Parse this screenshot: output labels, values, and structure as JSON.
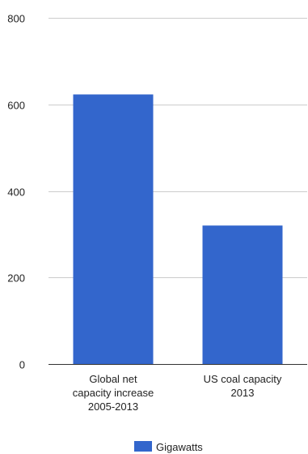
{
  "chart_data": {
    "type": "bar",
    "categories": [
      [
        "Global net",
        "capacity increase",
        "2005-2013"
      ],
      [
        "US coal capacity",
        "2013"
      ]
    ],
    "series": [
      {
        "name": "Gigawatts",
        "values": [
          623,
          320
        ],
        "color": "#3366cc"
      }
    ],
    "ylim": [
      0,
      800
    ],
    "yticks": [
      "0",
      "200",
      "400",
      "600",
      "800"
    ],
    "grid": true,
    "legend": "bottom",
    "title": "",
    "xlabel": "",
    "ylabel": ""
  }
}
